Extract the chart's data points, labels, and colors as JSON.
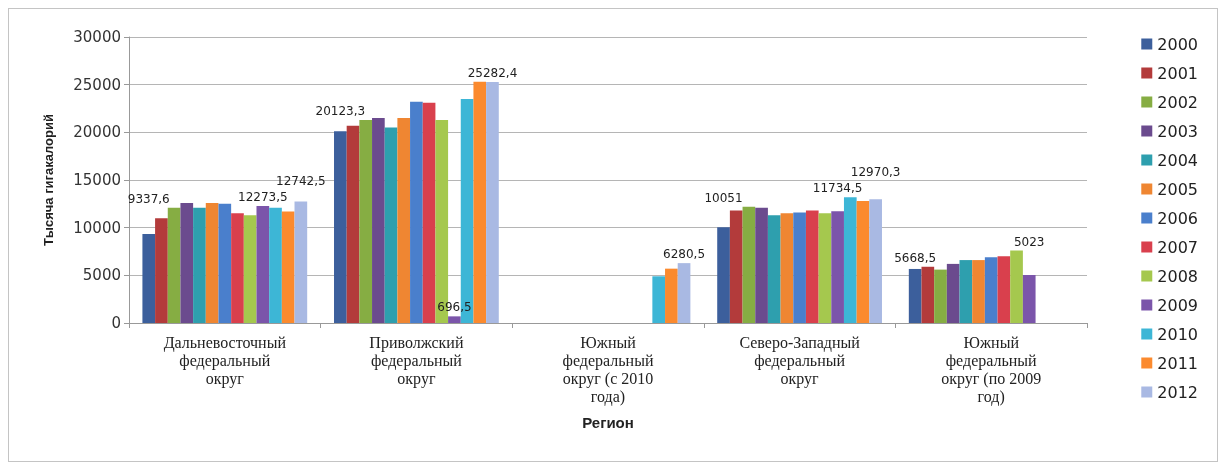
{
  "chart_data": {
    "type": "bar",
    "xlabel": "Регион",
    "ylabel": "Тысяча гигакалорий",
    "categories": [
      "Дальневосточный федеральный округ",
      "Приволжский федеральный округ",
      "Южный федеральный округ (с 2010 года)",
      "Северо-Западный федеральный округ",
      "Южный федеральный округ (по 2009 год)"
    ],
    "series": [
      {
        "name": "2000",
        "color": "#3c5f9c",
        "values": [
          9337.6,
          20123.3,
          null,
          10051,
          5668.5
        ],
        "value_labels": [
          "9337,6",
          "20123,3",
          null,
          "10051",
          "5668,5"
        ]
      },
      {
        "name": "2001",
        "color": "#b33b3b",
        "values": [
          11000,
          20700,
          null,
          11800,
          5900
        ]
      },
      {
        "name": "2002",
        "color": "#86ad43",
        "values": [
          12100,
          21300,
          null,
          12200,
          5600
        ]
      },
      {
        "name": "2003",
        "color": "#6b4b8e",
        "values": [
          12600,
          21500,
          null,
          12100,
          6200
        ]
      },
      {
        "name": "2004",
        "color": "#2e9fae",
        "values": [
          12100,
          20500,
          null,
          11300,
          6600
        ]
      },
      {
        "name": "2005",
        "color": "#ef8632",
        "values": [
          12600,
          21500,
          null,
          11500,
          6600
        ]
      },
      {
        "name": "2006",
        "color": "#4a7fcc",
        "values": [
          12500,
          23200,
          null,
          11600,
          6900
        ]
      },
      {
        "name": "2007",
        "color": "#d9404d",
        "values": [
          11500,
          23100,
          null,
          11800,
          7000
        ]
      },
      {
        "name": "2008",
        "color": "#a5c84e",
        "values": [
          11300,
          21300,
          null,
          11500,
          7600
        ]
      },
      {
        "name": "2009",
        "color": "#7b55aa",
        "values": [
          12273.5,
          696.5,
          null,
          11734.5,
          5023
        ],
        "value_labels": [
          "12273,5",
          "696,5",
          null,
          "11734,5",
          "5023"
        ]
      },
      {
        "name": "2010",
        "color": "#3db6d6",
        "values": [
          12100,
          23500,
          4900,
          13200,
          null
        ]
      },
      {
        "name": "2011",
        "color": "#fb8a2e",
        "values": [
          11700,
          25300,
          5700,
          12800,
          null
        ]
      },
      {
        "name": "2012",
        "color": "#a9b9e3",
        "values": [
          12742.5,
          25282.4,
          6280.5,
          12970.3,
          null
        ],
        "value_labels": [
          "12742,5",
          "25282,4",
          "6280,5",
          "12970,3",
          null
        ]
      }
    ],
    "ylim": [
      0,
      30000
    ],
    "yticks": [
      0,
      5000,
      10000,
      15000,
      20000,
      25000,
      30000
    ],
    "grid": "y",
    "legend": "right"
  }
}
